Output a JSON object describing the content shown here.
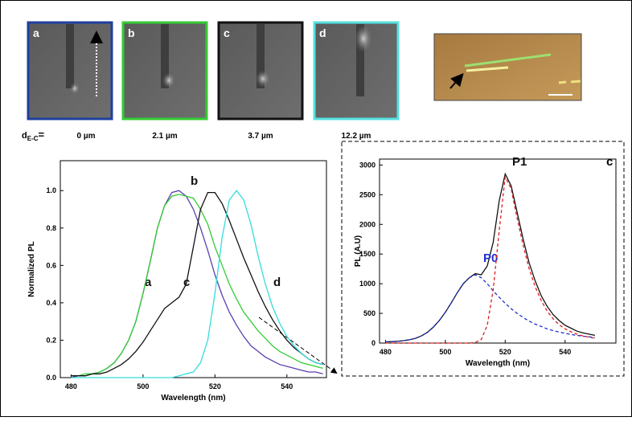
{
  "panels": [
    {
      "letter": "a",
      "caption": "0 µm",
      "border": "#1f3fa0"
    },
    {
      "letter": "b",
      "caption": "2.1 µm",
      "border": "#33cc33"
    },
    {
      "letter": "c",
      "caption": "3.7 µm",
      "border": "#111111"
    },
    {
      "letter": "d",
      "caption": "12.2 µm",
      "border": "#55e0e0"
    }
  ],
  "distance_label": {
    "main": "d",
    "sub": "E-C",
    "eq": "="
  },
  "chart_data": [
    {
      "type": "line",
      "ylabel": "Normalized PL",
      "xlabel": "Wavelength (nm)",
      "x": [
        480,
        482,
        484,
        486,
        488,
        490,
        492,
        494,
        496,
        498,
        500,
        502,
        504,
        506,
        508,
        510,
        512,
        514,
        516,
        518,
        520,
        522,
        524,
        526,
        528,
        530,
        532,
        534,
        536,
        538,
        540,
        542,
        544,
        546,
        548,
        550
      ],
      "series": [
        {
          "name": "a",
          "color": "#5a3fb0",
          "values": [
            0,
            0.01,
            0.01,
            0.02,
            0.03,
            0.05,
            0.08,
            0.13,
            0.2,
            0.3,
            0.45,
            0.62,
            0.8,
            0.92,
            0.99,
            1.0,
            0.97,
            0.9,
            0.8,
            0.68,
            0.55,
            0.44,
            0.35,
            0.28,
            0.22,
            0.17,
            0.14,
            0.11,
            0.09,
            0.07,
            0.06,
            0.05,
            0.04,
            0.03,
            0.03,
            0.02
          ]
        },
        {
          "name": "b",
          "color": "#33cc33",
          "values": [
            0.01,
            0.01,
            0.02,
            0.02,
            0.03,
            0.05,
            0.08,
            0.13,
            0.2,
            0.3,
            0.45,
            0.62,
            0.8,
            0.92,
            0.97,
            0.98,
            0.97,
            0.96,
            0.9,
            0.82,
            0.7,
            0.6,
            0.5,
            0.42,
            0.35,
            0.3,
            0.25,
            0.21,
            0.17,
            0.14,
            0.12,
            0.1,
            0.08,
            0.07,
            0.06,
            0.05
          ]
        },
        {
          "name": "c",
          "color": "#111111",
          "values": [
            0.01,
            0.01,
            0.01,
            0.02,
            0.02,
            0.03,
            0.05,
            0.07,
            0.1,
            0.14,
            0.19,
            0.25,
            0.31,
            0.37,
            0.4,
            0.43,
            0.5,
            0.7,
            0.9,
            0.99,
            0.99,
            0.93,
            0.84,
            0.74,
            0.64,
            0.55,
            0.46,
            0.38,
            0.31,
            0.25,
            0.2,
            0.16,
            0.13,
            0.1,
            0.08,
            0.07
          ]
        },
        {
          "name": "d",
          "color": "#33dddd",
          "values": [
            0,
            0,
            0,
            0,
            0,
            0,
            0,
            0,
            0,
            0,
            0,
            0,
            0,
            0,
            0,
            0.01,
            0.02,
            0.03,
            0.08,
            0.2,
            0.45,
            0.75,
            0.95,
            1.0,
            0.95,
            0.82,
            0.65,
            0.5,
            0.38,
            0.29,
            0.22,
            0.17,
            0.13,
            0.1,
            0.08,
            0.07
          ]
        }
      ],
      "xlim": [
        477,
        551
      ],
      "xticks": [
        480,
        500,
        520,
        540
      ],
      "ylim": [
        0,
        1.16
      ],
      "yticks": [
        {
          "value": 0,
          "label": "0.0"
        },
        {
          "value": 0.2,
          "label": "0.2"
        },
        {
          "value": 0.4,
          "label": "0.4"
        },
        {
          "value": 0.6,
          "label": "0.6"
        },
        {
          "value": 0.8,
          "label": "0.8"
        },
        {
          "value": 1,
          "label": "1.0"
        }
      ]
    },
    {
      "type": "line",
      "ylabel": "PL (A.U)",
      "xlabel": "Wavelength (nm)",
      "panel_label": "c",
      "x": [
        480,
        482,
        484,
        486,
        488,
        490,
        492,
        494,
        496,
        498,
        500,
        502,
        504,
        506,
        508,
        510,
        512,
        514,
        516,
        518,
        520,
        522,
        524,
        526,
        528,
        530,
        532,
        534,
        536,
        538,
        540,
        542,
        544,
        546,
        548,
        550
      ],
      "series": [
        {
          "color": "#111111",
          "values": [
            20,
            25,
            30,
            40,
            55,
            80,
            120,
            180,
            270,
            380,
            520,
            680,
            850,
            1000,
            1100,
            1170,
            1150,
            1300,
            1700,
            2400,
            2850,
            2650,
            2200,
            1750,
            1350,
            1050,
            800,
            620,
            480,
            380,
            300,
            250,
            200,
            170,
            150,
            130
          ]
        },
        {
          "name": "P0",
          "color": "#1f2fd0",
          "dashed": true,
          "values": [
            20,
            25,
            30,
            40,
            55,
            80,
            120,
            180,
            270,
            380,
            520,
            680,
            850,
            1000,
            1100,
            1150,
            1100,
            1000,
            880,
            770,
            670,
            580,
            500,
            430,
            370,
            320,
            280,
            240,
            210,
            185,
            165,
            145,
            130,
            115,
            105,
            95
          ]
        },
        {
          "name": "P1",
          "color": "#e02020",
          "dashed": true,
          "values": [
            0,
            0,
            0,
            0,
            0,
            0,
            0,
            0,
            0,
            0,
            0,
            0,
            0,
            0,
            0,
            10,
            60,
            300,
            900,
            1900,
            2800,
            2600,
            2100,
            1650,
            1250,
            950,
            720,
            540,
            410,
            310,
            240,
            190,
            150,
            120,
            100,
            80
          ]
        }
      ],
      "xlim": [
        478,
        557
      ],
      "xticks": [
        480,
        500,
        520,
        540
      ],
      "ylim": [
        0,
        3100
      ],
      "yticks": [
        0,
        500,
        1000,
        1500,
        2000,
        2500,
        3000
      ]
    }
  ]
}
